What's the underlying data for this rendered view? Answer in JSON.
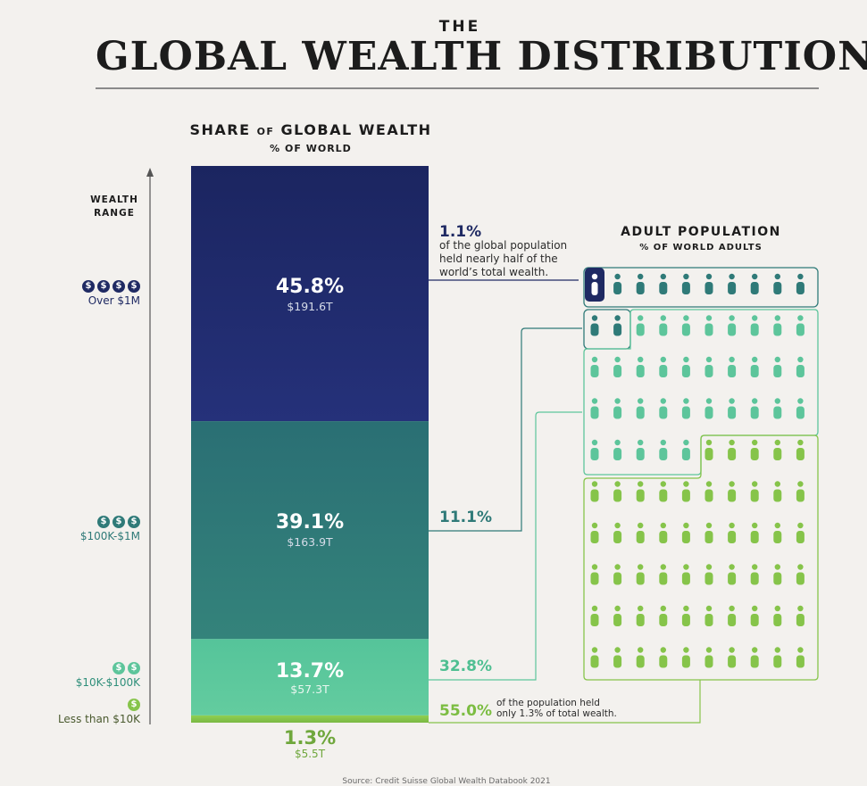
{
  "header": {
    "kicker": "THE",
    "title": "GLOBAL WEALTH DISTRIBUTION"
  },
  "share_heading": {
    "main_pre": "SHARE",
    "main_of": "OF",
    "main_post": "GLOBAL WEALTH",
    "sub": "% OF WORLD"
  },
  "axis": {
    "title_line1": "WEALTH",
    "title_line2": "RANGE"
  },
  "tiers": [
    {
      "dollars": [
        "$",
        "$",
        "$",
        "$"
      ],
      "label": "Over $1M",
      "color": "#1f2a63"
    },
    {
      "dollars": [
        "$",
        "$",
        "$"
      ],
      "label": "$100K-$1M",
      "color": "#2f7a78"
    },
    {
      "dollars": [
        "$",
        "$"
      ],
      "label": "$10K-$100K",
      "color": "#5dc59b"
    },
    {
      "dollars": [
        "$"
      ],
      "label": "Less than $10K",
      "color": "#86c44a"
    }
  ],
  "population_heading": {
    "main": "ADULT POPULATION",
    "sub": "% OF WORLD ADULTS"
  },
  "annotations": {
    "top_pct": "1.1%",
    "top_text_1": "of the global population",
    "top_text_2": "held nearly half of the",
    "top_text_3": "world’s total wealth.",
    "mid_pct": "11.1%",
    "lower_pct": "32.8%",
    "bottom_pct": "55.0%",
    "bottom_text_1": "of the population held",
    "bottom_text_2": "only 1.3% of total wealth."
  },
  "source": "Source: Credit Suisse Global Wealth Databook 2021",
  "chart_data": {
    "type": "bar",
    "title": "GLOBAL WEALTH DISTRIBUTION",
    "subtitle": "SHARE OF GLOBAL WEALTH",
    "ylabel": "WEALTH RANGE",
    "categories": [
      "Over $1M",
      "$100K-$1M",
      "$10K-$100K",
      "Less than $10K"
    ],
    "series": [
      {
        "name": "SHARE OF GLOBAL WEALTH",
        "values": [
          45.8,
          39.1,
          13.7,
          1.3
        ],
        "labels": [
          "45.8%",
          "39.1%",
          "13.7%",
          "1.3%"
        ],
        "amounts": [
          "$191.6T",
          "$163.9T",
          "$57.3T",
          "$5.5T"
        ]
      },
      {
        "name": "ADULT POPULATION",
        "values": [
          1.1,
          11.1,
          32.8,
          55.0
        ],
        "labels": [
          "1.1%",
          "11.1%",
          "32.8%",
          "55.0%"
        ]
      }
    ],
    "colors": [
      "#1f2a63",
      "#2f7a78",
      "#5dc59b",
      "#86c44a"
    ],
    "population_icon_counts": [
      1,
      11,
      33,
      55
    ],
    "ylim": [
      0,
      100
    ]
  }
}
